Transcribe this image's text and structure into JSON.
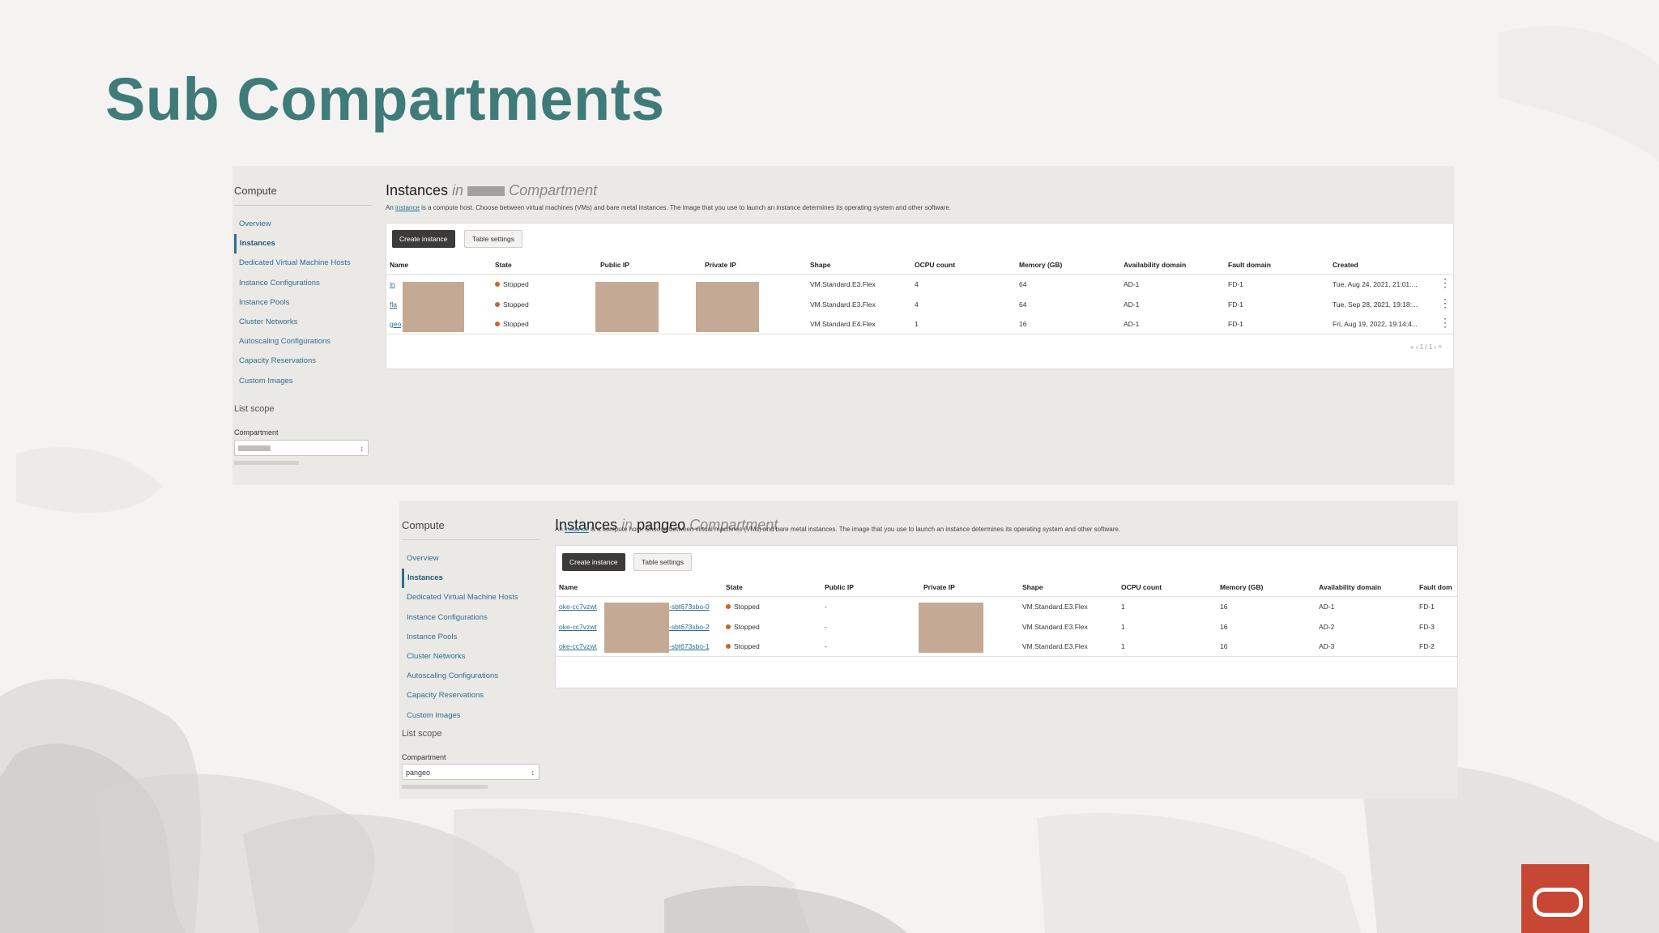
{
  "slide": {
    "title": "Sub Compartments"
  },
  "shot1": {
    "sidebar": {
      "title": "Compute",
      "items": [
        "Overview",
        "Instances",
        "Dedicated Virtual Machine Hosts",
        "Instance Configurations",
        "Instance Pools",
        "Cluster Networks",
        "Autoscaling Configurations",
        "Capacity Reservations",
        "Custom Images"
      ],
      "active": "Instances",
      "list_scope": "List scope",
      "compartment_label": "Compartment"
    },
    "heading_main": "Instances",
    "heading_in": "in",
    "heading_compartment_word": "Compartment",
    "description_prefix": "An",
    "description_link": "instance",
    "description_rest": "is a compute host. Choose between virtual machines (VMs) and bare metal instances. The image that you use to launch an instance determines its operating system and other software.",
    "create_button": "Create instance",
    "settings_button": "Table settings",
    "columns": [
      "Name",
      "State",
      "Public IP",
      "Private IP",
      "Shape",
      "OCPU count",
      "Memory (GB)",
      "Availability domain",
      "Fault domain",
      "Created"
    ],
    "rows": [
      {
        "name": "in",
        "state": "Stopped",
        "public_ip": "",
        "private_ip": "",
        "shape": "VM.Standard.E3.Flex",
        "ocpu": "4",
        "memory": "64",
        "ad": "AD-1",
        "fd": "FD-1",
        "created": "Tue, Aug 24, 2021, 21:01:..."
      },
      {
        "name": "fla",
        "state": "Stopped",
        "public_ip": "",
        "private_ip": "",
        "shape": "VM.Standard.E3.Flex",
        "ocpu": "4",
        "memory": "64",
        "ad": "AD-1",
        "fd": "FD-1",
        "created": "Tue, Sep 28, 2021, 19:18:..."
      },
      {
        "name": "geo",
        "state": "Stopped",
        "public_ip": "",
        "private_ip": "",
        "shape": "VM.Standard.E4.Flex",
        "ocpu": "1",
        "memory": "16",
        "ad": "AD-1",
        "fd": "FD-1",
        "created": "Fri, Aug 19, 2022, 19:14:4..."
      }
    ],
    "pager": "1 / 1"
  },
  "shot2": {
    "sidebar": {
      "title": "Compute",
      "items": [
        "Overview",
        "Instances",
        "Dedicated Virtual Machine Hosts",
        "Instance Configurations",
        "Instance Pools",
        "Cluster Networks",
        "Autoscaling Configurations",
        "Capacity Reservations",
        "Custom Images"
      ],
      "active": "Instances",
      "list_scope": "List scope",
      "compartment_label": "Compartment",
      "compartment_value": "pangeo"
    },
    "heading_main": "Instances",
    "heading_in": "in",
    "heading_name": "pangeo",
    "heading_compartment_word": "Compartment",
    "description_prefix": "An",
    "description_link": "instance",
    "description_rest": "is a compute host. Choose between virtual machines (VMs) and bare metal instances. The image that you use to launch an instance determines its operating system and other software.",
    "create_button": "Create instance",
    "settings_button": "Table settings",
    "columns": [
      "Name",
      "State",
      "Public IP",
      "Private IP",
      "Shape",
      "OCPU count",
      "Memory (GB)",
      "Availability domain",
      "Fault dom"
    ],
    "rows": [
      {
        "name": "oke-cc7vzwt",
        "name_suffix": "-sbt673sbo-0",
        "state": "Stopped",
        "public_ip": "-",
        "private_ip": "",
        "shape": "VM.Standard.E3.Flex",
        "ocpu": "1",
        "memory": "16",
        "ad": "AD-1",
        "fd": "FD-1"
      },
      {
        "name": "oke-cc7vzwt",
        "name_suffix": "-sbt673sbo-2",
        "state": "Stopped",
        "public_ip": "-",
        "private_ip": "",
        "shape": "VM.Standard.E3.Flex",
        "ocpu": "1",
        "memory": "16",
        "ad": "AD-2",
        "fd": "FD-3"
      },
      {
        "name": "oke-cc7vzwt",
        "name_suffix": "-sbt673sbo-1",
        "state": "Stopped",
        "public_ip": "-",
        "private_ip": "",
        "shape": "VM.Standard.E3.Flex",
        "ocpu": "1",
        "memory": "16",
        "ad": "AD-3",
        "fd": "FD-2"
      }
    ]
  },
  "colors": {
    "title_teal": "#3e7b79",
    "brand_red": "#c74634",
    "link_blue": "#2d6f8d",
    "stopped_orange": "#c9652a"
  },
  "icons": {
    "logo": "oracle-logo",
    "row_menu": "kebab-icon",
    "select_caret": "updown-caret-icon"
  }
}
